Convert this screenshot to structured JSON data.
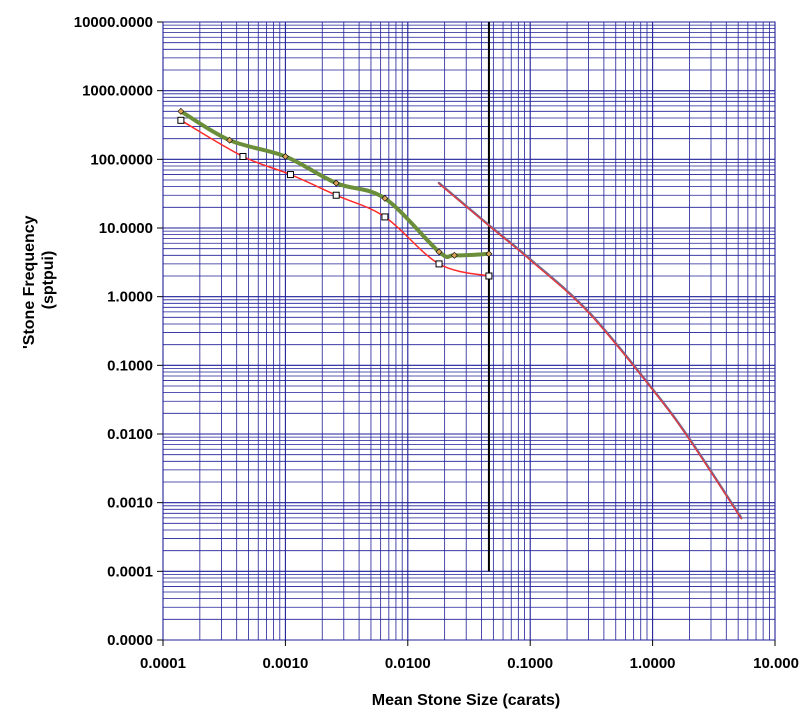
{
  "chart_data": {
    "type": "line",
    "x_scale": "log",
    "y_scale": "log",
    "xlim": [
      0.0001,
      10
    ],
    "ylim": [
      1e-05,
      10000
    ],
    "grid": true,
    "xlabel": "Mean Stone Size (carats)",
    "ylabel_lines": [
      "'Stone Frequency",
      "(sptpui)"
    ],
    "x_ticks": [
      {
        "value": 0.0001,
        "label": "0.0001"
      },
      {
        "value": 0.001,
        "label": "0.0010"
      },
      {
        "value": 0.01,
        "label": "0.0100"
      },
      {
        "value": 0.1,
        "label": "0.1000"
      },
      {
        "value": 1,
        "label": "1.0000"
      },
      {
        "value": 10,
        "label": "10.000"
      }
    ],
    "y_ticks": [
      {
        "value": 10000,
        "label": "10000.0000"
      },
      {
        "value": 1000,
        "label": "1000.0000"
      },
      {
        "value": 100,
        "label": "100.0000"
      },
      {
        "value": 10,
        "label": "10.0000"
      },
      {
        "value": 1,
        "label": "1.0000"
      },
      {
        "value": 0.1,
        "label": "0.1000"
      },
      {
        "value": 0.01,
        "label": "0.0100"
      },
      {
        "value": 0.001,
        "label": "0.0010"
      },
      {
        "value": 0.0001,
        "label": "0.0001"
      },
      {
        "value": 1e-05,
        "label": "0.0000"
      }
    ],
    "vertical_marker_x": 0.046,
    "vertical_marker_ylim": [
      0.0001,
      10000
    ],
    "series": [
      {
        "color": "#ff2a2a",
        "width": 1.5,
        "marker": "square",
        "x": [
          0.00014,
          0.00045,
          0.0011,
          0.0026,
          0.0065,
          0.018,
          0.046
        ],
        "y": [
          370,
          110,
          60,
          30,
          14.5,
          3.0,
          2.0
        ]
      },
      {
        "color": "#6b8e3a",
        "width": 4,
        "marker": "diamond",
        "x": [
          0.00014,
          0.00035,
          0.001,
          0.0026,
          0.0065,
          0.018,
          0.024,
          0.046
        ],
        "y": [
          500,
          190,
          110,
          45,
          27,
          4.5,
          4.0,
          4.2
        ]
      },
      {
        "color": "#7a6a8c",
        "width": 2.5,
        "marker": "none",
        "x": [
          0.018,
          0.046,
          0.1,
          0.3,
          1.0,
          2.0,
          5.3
        ],
        "y": [
          45,
          11,
          3.5,
          0.6,
          0.045,
          0.0085,
          0.0006
        ]
      },
      {
        "color": "#ff2a2a",
        "width": 1,
        "marker": "none",
        "x": [
          0.018,
          0.046,
          0.1,
          0.3,
          1.0,
          2.0,
          5.3
        ],
        "y": [
          44,
          10.8,
          3.4,
          0.58,
          0.044,
          0.0083,
          0.00058
        ]
      }
    ]
  }
}
